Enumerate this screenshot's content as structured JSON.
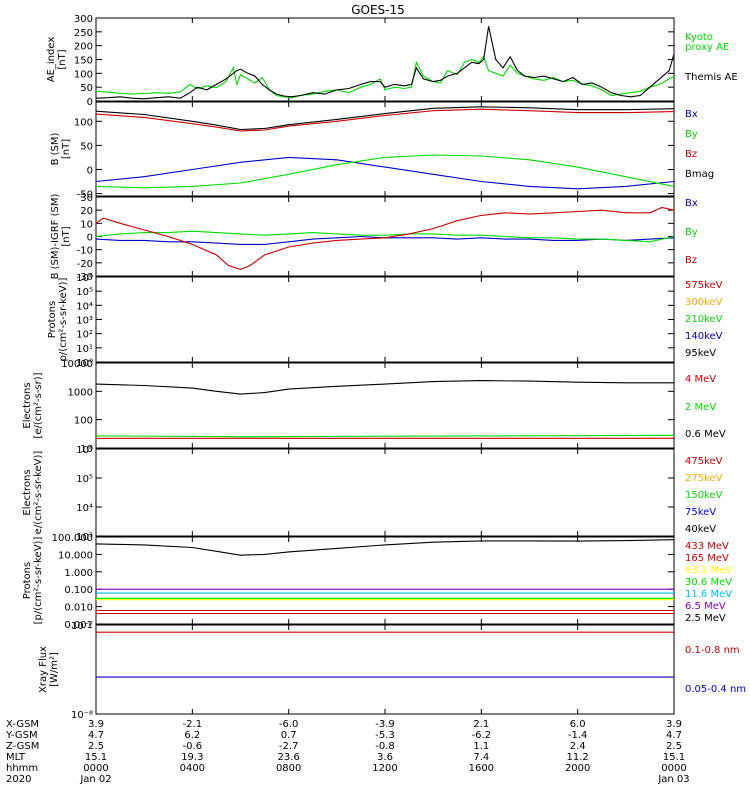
{
  "title": "GOES-15",
  "chart_data": [
    {
      "type": "line",
      "ylabel": [
        "AE_index",
        "[nT]"
      ],
      "ylim": [
        0,
        300
      ],
      "yscale": "linear",
      "yticks": [
        0,
        50,
        100,
        150,
        200,
        250,
        300
      ],
      "ytick_labels": [
        "0",
        "50",
        "100",
        "150",
        "200",
        "250",
        "300"
      ],
      "series": [
        {
          "name": "Kyoto",
          "color": "#00dd00",
          "x": [
            0,
            0.5,
            1,
            1.5,
            2,
            2.5,
            3,
            3.5,
            3.9,
            4.2,
            4.6,
            5,
            5.4,
            5.7,
            5.85,
            6,
            6.3,
            6.6,
            6.9,
            7.2,
            7.5,
            7.8,
            8.1,
            8.5,
            9,
            9.5,
            10,
            10.5,
            11,
            11.4,
            11.8,
            12,
            12.4,
            12.8,
            13.1,
            13.3,
            13.6,
            14,
            14.3,
            14.6,
            15,
            15.3,
            15.6,
            15.9,
            16.1,
            16.3,
            16.6,
            16.9,
            17.2,
            17.5,
            17.8,
            18.2,
            18.6,
            19,
            19.4,
            19.8,
            20.2,
            20.6,
            21,
            21.4,
            21.8,
            22.2,
            22.6,
            23,
            23.4,
            23.8,
            24
          ],
          "y": [
            35,
            32,
            28,
            25,
            27,
            30,
            28,
            32,
            60,
            45,
            55,
            48,
            70,
            120,
            60,
            95,
            80,
            65,
            85,
            40,
            20,
            15,
            12,
            20,
            25,
            35,
            40,
            30,
            50,
            60,
            80,
            40,
            50,
            45,
            50,
            140,
            90,
            70,
            65,
            110,
            95,
            140,
            150,
            140,
            160,
            110,
            100,
            90,
            130,
            100,
            90,
            80,
            75,
            85,
            70,
            75,
            60,
            55,
            40,
            20,
            25,
            30,
            35,
            50,
            60,
            80,
            90
          ]
        },
        {
          "name": "proxy AE",
          "color": "#00dd00",
          "x": [],
          "y": []
        },
        {
          "name": "Themis AE",
          "color": "#000000",
          "x": [
            0,
            0.5,
            1,
            1.5,
            2,
            2.5,
            3,
            3.5,
            3.9,
            4.2,
            4.6,
            5,
            5.4,
            5.7,
            5.85,
            6,
            6.3,
            6.6,
            6.9,
            7.2,
            7.5,
            7.8,
            8.1,
            8.5,
            9,
            9.5,
            10,
            10.5,
            11,
            11.4,
            11.8,
            12,
            12.4,
            12.8,
            13.1,
            13.3,
            13.6,
            14,
            14.3,
            14.6,
            15,
            15.3,
            15.6,
            15.9,
            16.1,
            16.3,
            16.6,
            16.9,
            17.2,
            17.5,
            17.8,
            18.2,
            18.6,
            19,
            19.4,
            19.8,
            20.2,
            20.6,
            21,
            21.4,
            21.8,
            22.2,
            22.6,
            23,
            23.4,
            23.8,
            24
          ],
          "y": [
            10,
            12,
            15,
            10,
            8,
            12,
            15,
            10,
            30,
            50,
            40,
            60,
            80,
            100,
            110,
            115,
            100,
            90,
            60,
            40,
            25,
            18,
            15,
            20,
            30,
            25,
            40,
            45,
            60,
            70,
            70,
            50,
            60,
            55,
            60,
            120,
            80,
            70,
            75,
            90,
            100,
            120,
            140,
            135,
            150,
            270,
            150,
            120,
            160,
            110,
            90,
            85,
            90,
            80,
            70,
            85,
            60,
            65,
            50,
            30,
            20,
            15,
            20,
            50,
            80,
            110,
            170
          ]
        }
      ]
    },
    {
      "type": "line",
      "ylabel": [
        "B (SM)",
        "[nT]"
      ],
      "ylim": [
        -55,
        140
      ],
      "yscale": "linear",
      "yticks": [
        -50,
        0,
        50,
        100
      ],
      "ytick_labels": [
        "-50",
        "0",
        "50",
        "100"
      ],
      "series": [
        {
          "name": "Bx",
          "color": "#0000c8",
          "x": [
            0,
            2,
            4,
            6,
            8,
            10,
            12,
            14,
            16,
            18,
            20,
            22,
            24
          ],
          "y": [
            -25,
            -15,
            0,
            15,
            25,
            20,
            5,
            -10,
            -25,
            -35,
            -40,
            -35,
            -25
          ]
        },
        {
          "name": "By",
          "color": "#00dd00",
          "x": [
            0,
            2,
            4,
            6,
            8,
            10,
            12,
            14,
            16,
            18,
            20,
            22,
            24
          ],
          "y": [
            -35,
            -38,
            -35,
            -28,
            -10,
            10,
            25,
            30,
            28,
            20,
            5,
            -15,
            -35
          ]
        },
        {
          "name": "Bz",
          "color": "#cc0000",
          "x": [
            0,
            2,
            4,
            5,
            6,
            7,
            8,
            10,
            12,
            14,
            16,
            18,
            20,
            22,
            24
          ],
          "y": [
            115,
            108,
            95,
            88,
            80,
            82,
            90,
            100,
            112,
            122,
            125,
            122,
            118,
            118,
            120
          ]
        },
        {
          "name": "Bmag",
          "color": "#000000",
          "x": [
            0,
            2,
            4,
            5,
            6,
            7,
            8,
            10,
            12,
            14,
            16,
            18,
            20,
            22,
            24
          ],
          "y": [
            121,
            114,
            100,
            92,
            83,
            85,
            93,
            104,
            116,
            127,
            130,
            128,
            124,
            124,
            126
          ]
        }
      ]
    },
    {
      "type": "line",
      "ylabel": [
        "B (SM)-IGRF (SM)",
        "[nT]"
      ],
      "ylim": [
        -30,
        30
      ],
      "yscale": "linear",
      "yticks": [
        -30,
        -20,
        -10,
        0,
        10,
        20,
        30
      ],
      "ytick_labels": [
        "-30",
        "-20",
        "-10",
        "0",
        "10",
        "20",
        "30"
      ],
      "series": [
        {
          "name": "Bx",
          "color": "#0000c8",
          "x": [
            0,
            1,
            2,
            3,
            4,
            5,
            6,
            7,
            8,
            9,
            10,
            11,
            12,
            13,
            14,
            15,
            16,
            17,
            18,
            19,
            20,
            21,
            22,
            23,
            24
          ],
          "y": [
            -2,
            -3,
            -3,
            -4,
            -4,
            -5,
            -6,
            -6,
            -4,
            -2,
            -1,
            0,
            -1,
            -1,
            -1,
            -2,
            -1,
            -2,
            -2,
            -3,
            -3,
            -2,
            -3,
            -2,
            -1
          ]
        },
        {
          "name": "By",
          "color": "#00dd00",
          "x": [
            0,
            1,
            2,
            3,
            4,
            5,
            6,
            7,
            8,
            9,
            10,
            11,
            12,
            13,
            14,
            15,
            16,
            17,
            18,
            19,
            20,
            21,
            22,
            23,
            24
          ],
          "y": [
            0,
            2,
            3,
            3,
            4,
            3,
            2,
            1,
            2,
            3,
            2,
            1,
            1,
            2,
            2,
            1,
            1,
            0,
            -1,
            -1,
            -2,
            -2,
            -3,
            -4,
            0
          ]
        },
        {
          "name": "Bz",
          "color": "#cc0000",
          "x": [
            0,
            0.3,
            1,
            2,
            3,
            4,
            5,
            5.5,
            6,
            6.4,
            7,
            8,
            9,
            10,
            11,
            12,
            13,
            14,
            15,
            16,
            17,
            18,
            19,
            20,
            21,
            22,
            23,
            23.5,
            24
          ],
          "y": [
            10,
            14,
            10,
            5,
            0,
            -6,
            -14,
            -22,
            -25,
            -22,
            -14,
            -8,
            -5,
            -3,
            -2,
            -1,
            2,
            6,
            12,
            16,
            18,
            17,
            18,
            19,
            20,
            18,
            18,
            22,
            20
          ]
        }
      ]
    },
    {
      "type": "line",
      "ylabel": [
        "Protons",
        "p/(cm²-s-sr-keV)]"
      ],
      "ylim": [
        1,
        1000000
      ],
      "yscale": "log",
      "yticks": [
        1,
        10,
        100,
        1000,
        10000,
        100000,
        1000000
      ],
      "ytick_labels": [
        "10⁰",
        "10¹",
        "10²",
        "10³",
        "10⁴",
        "10⁵",
        "10⁶"
      ],
      "series": [
        {
          "name": "575keV",
          "color": "#cc0000",
          "x": [],
          "y": []
        },
        {
          "name": "300keV",
          "color": "#ffaa00",
          "x": [],
          "y": []
        },
        {
          "name": "210keV",
          "color": "#00dd00",
          "x": [],
          "y": []
        },
        {
          "name": "140keV",
          "color": "#0000c8",
          "x": [],
          "y": []
        },
        {
          "name": "95keV",
          "color": "#000000",
          "x": [],
          "y": []
        }
      ]
    },
    {
      "type": "line",
      "ylabel": [
        "Electrons",
        "[e/(cm²-s-sr)]"
      ],
      "ylim": [
        10,
        10000
      ],
      "yscale": "log",
      "yticks": [
        10,
        100,
        1000,
        10000
      ],
      "ytick_labels": [
        "10",
        "100",
        "1000",
        "10000"
      ],
      "series": [
        {
          "name": "4 MeV",
          "color": "#cc0000",
          "x": [
            0,
            24
          ],
          "y": [
            22,
            22
          ]
        },
        {
          "name": "2 MeV",
          "color": "#00dd00",
          "x": [
            0,
            6,
            12,
            18,
            24
          ],
          "y": [
            27,
            25,
            26,
            27,
            28
          ]
        },
        {
          "name": "0.6 MeV",
          "color": "#000000",
          "x": [
            0,
            2,
            4,
            5,
            6,
            7,
            8,
            10,
            12,
            14,
            16,
            18,
            20,
            22,
            24
          ],
          "y": [
            1800,
            1600,
            1300,
            1000,
            800,
            900,
            1200,
            1500,
            1800,
            2200,
            2400,
            2300,
            2100,
            2000,
            2000
          ]
        }
      ]
    },
    {
      "type": "line",
      "ylabel": [
        "Electrons",
        "e/(cm²-s-sr-keV)]"
      ],
      "ylim": [
        1000,
        1000000
      ],
      "yscale": "log",
      "yticks": [
        1000,
        10000,
        100000,
        1000000
      ],
      "ytick_labels": [
        "10³",
        "10⁴",
        "10⁵",
        "10⁶"
      ],
      "series": [
        {
          "name": "475keV",
          "color": "#cc0000",
          "x": [],
          "y": []
        },
        {
          "name": "275keV",
          "color": "#ffaa00",
          "x": [],
          "y": []
        },
        {
          "name": "150keV",
          "color": "#00dd00",
          "x": [],
          "y": []
        },
        {
          "name": "75keV",
          "color": "#0000c8",
          "x": [],
          "y": []
        },
        {
          "name": "40keV",
          "color": "#000000",
          "x": [],
          "y": []
        }
      ]
    },
    {
      "type": "line",
      "ylabel": [
        "Protons",
        "[p/(cm²-s-sr-keV)]"
      ],
      "ylim": [
        0.001,
        100
      ],
      "yscale": "log",
      "yticks": [
        0.001,
        0.01,
        0.1,
        1,
        10,
        100
      ],
      "ytick_labels": [
        "0.001",
        "0.010",
        "0.100",
        "1.000",
        "10.000",
        "100.000"
      ],
      "series": [
        {
          "name": "433 MeV",
          "color": "#cc0000",
          "x": [
            0,
            24
          ],
          "y": [
            0.004,
            0.004
          ]
        },
        {
          "name": "165 MeV",
          "color": "#cc0000",
          "x": [
            0,
            24
          ],
          "y": [
            0.006,
            0.006
          ]
        },
        {
          "name": "63.1 MeV",
          "color": "#ffff00",
          "x": [
            0,
            24
          ],
          "y": [
            0.025,
            0.025
          ]
        },
        {
          "name": "30.6 MeV",
          "color": "#00dd00",
          "x": [
            0,
            24
          ],
          "y": [
            0.03,
            0.03
          ]
        },
        {
          "name": "11.6 MeV",
          "color": "#00bbff",
          "x": [
            0,
            24
          ],
          "y": [
            0.06,
            0.06
          ]
        },
        {
          "name": "6.5 MeV",
          "color": "#8800cc",
          "x": [
            0,
            24
          ],
          "y": [
            0.1,
            0.1
          ]
        },
        {
          "name": "2.5 MeV",
          "color": "#000000",
          "x": [
            0,
            2,
            4,
            5,
            6,
            7,
            8,
            10,
            12,
            14,
            16,
            18,
            20,
            22,
            24
          ],
          "y": [
            40,
            35,
            25,
            15,
            9,
            10,
            14,
            22,
            35,
            50,
            60,
            60,
            58,
            62,
            70
          ]
        }
      ]
    },
    {
      "type": "line",
      "ylabel": [
        "Xray Flux",
        "[W/m²]"
      ],
      "ylim": [
        1e-08,
        1e-07
      ],
      "yscale": "log",
      "yticks": [
        1e-08,
        1e-07
      ],
      "ytick_labels": [
        "10⁻⁸",
        "10⁻⁷"
      ],
      "series": [
        {
          "name": "0.1-0.8 nm",
          "color": "#cc0000",
          "x": [
            0,
            24
          ],
          "y": [
            8.3e-08,
            8.3e-08
          ]
        },
        {
          "name": "0.05-0.4 nm",
          "color": "#0000c8",
          "x": [
            0,
            24
          ],
          "y": [
            2.6e-08,
            2.6e-08
          ]
        }
      ]
    }
  ],
  "x_axis": {
    "range": [
      0,
      24
    ],
    "ticks": [
      0,
      4,
      8,
      12,
      16,
      20,
      24
    ],
    "rows": [
      {
        "label": "X-GSM",
        "values": [
          "3.9",
          "-2.1",
          "-6.0",
          "-3.9",
          "2.1",
          "6.0",
          "3.9"
        ]
      },
      {
        "label": "Y-GSM",
        "values": [
          "4.7",
          "6.2",
          "0.7",
          "-5.3",
          "-6.2",
          "-1.4",
          "4.7"
        ]
      },
      {
        "label": "Z-GSM",
        "values": [
          "2.5",
          "-0.6",
          "-2.7",
          "-0.8",
          "1.1",
          "2.4",
          "2.5"
        ]
      },
      {
        "label": "MLT",
        "values": [
          "15.1",
          "19.3",
          "23.6",
          "3.6",
          "7.4",
          "11.2",
          "15.1"
        ]
      },
      {
        "label": "hhmm",
        "values": [
          "0000",
          "0400",
          "0800",
          "1200",
          "1600",
          "2000",
          "0000"
        ]
      },
      {
        "label": "2020",
        "values": [
          "Jan 02",
          "",
          "",
          "",
          "",
          "",
          "Jan 03"
        ]
      }
    ]
  }
}
